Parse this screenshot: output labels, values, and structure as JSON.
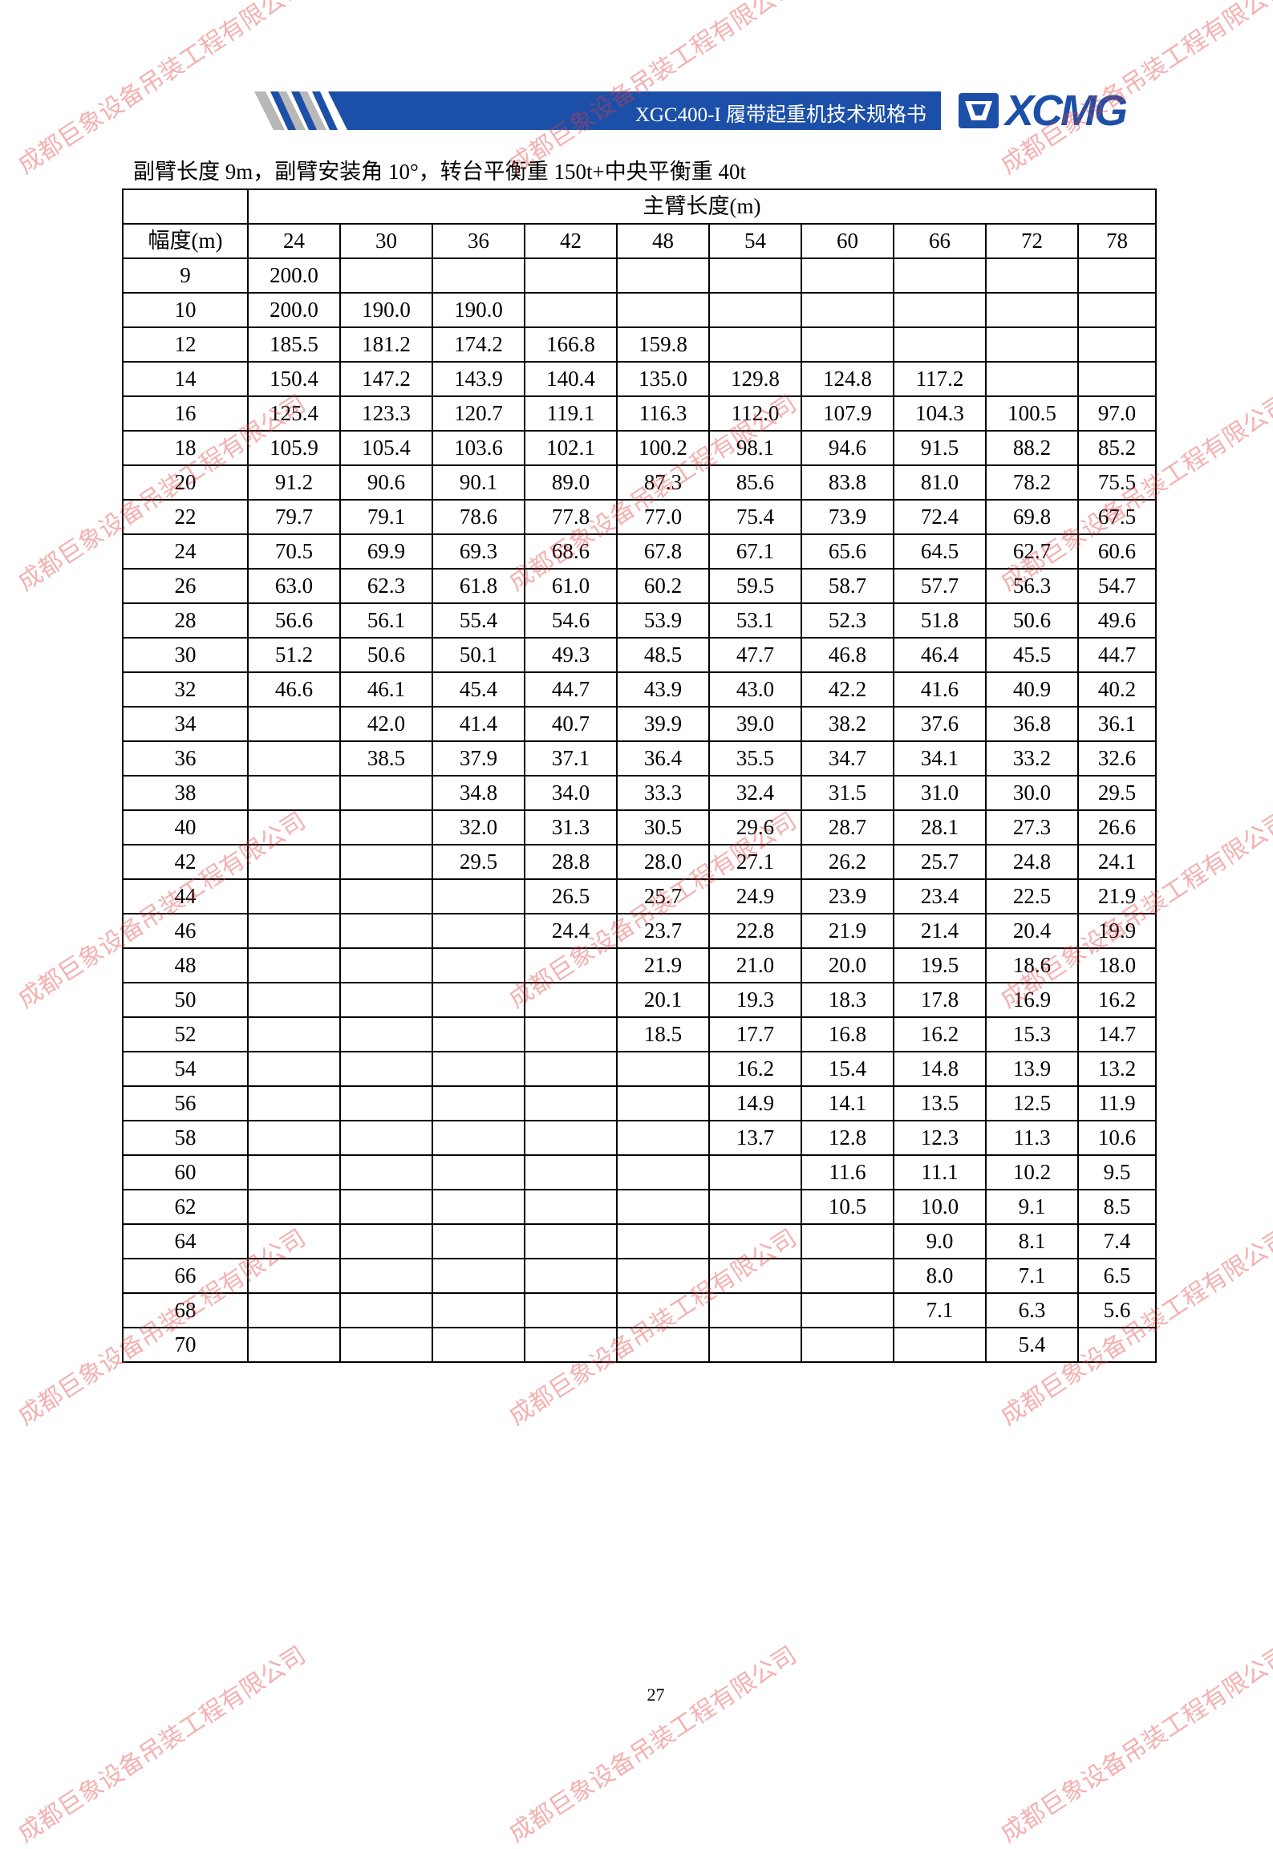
{
  "header": {
    "title": "XGC400-I 履带起重机技术规格书",
    "logo_text": "XCMG",
    "brand_color": "#1c4fa8"
  },
  "subtitle": "副臂长度 9m，副臂安装角 10°，转台平衡重 150t+中央平衡重 40t",
  "table": {
    "group_header": "主臂长度(m)",
    "row_header_label": "幅度(m)",
    "columns": [
      "24",
      "30",
      "36",
      "42",
      "48",
      "54",
      "60",
      "66",
      "72",
      "78"
    ],
    "rows": [
      {
        "radius": "9",
        "values": [
          "200.0",
          "",
          "",
          "",
          "",
          "",
          "",
          "",
          "",
          ""
        ]
      },
      {
        "radius": "10",
        "values": [
          "200.0",
          "190.0",
          "190.0",
          "",
          "",
          "",
          "",
          "",
          "",
          ""
        ]
      },
      {
        "radius": "12",
        "values": [
          "185.5",
          "181.2",
          "174.2",
          "166.8",
          "159.8",
          "",
          "",
          "",
          "",
          ""
        ]
      },
      {
        "radius": "14",
        "values": [
          "150.4",
          "147.2",
          "143.9",
          "140.4",
          "135.0",
          "129.8",
          "124.8",
          "117.2",
          "",
          ""
        ]
      },
      {
        "radius": "16",
        "values": [
          "125.4",
          "123.3",
          "120.7",
          "119.1",
          "116.3",
          "112.0",
          "107.9",
          "104.3",
          "100.5",
          "97.0"
        ]
      },
      {
        "radius": "18",
        "values": [
          "105.9",
          "105.4",
          "103.6",
          "102.1",
          "100.2",
          "98.1",
          "94.6",
          "91.5",
          "88.2",
          "85.2"
        ]
      },
      {
        "radius": "20",
        "values": [
          "91.2",
          "90.6",
          "90.1",
          "89.0",
          "87.3",
          "85.6",
          "83.8",
          "81.0",
          "78.2",
          "75.5"
        ]
      },
      {
        "radius": "22",
        "values": [
          "79.7",
          "79.1",
          "78.6",
          "77.8",
          "77.0",
          "75.4",
          "73.9",
          "72.4",
          "69.8",
          "67.5"
        ]
      },
      {
        "radius": "24",
        "values": [
          "70.5",
          "69.9",
          "69.3",
          "68.6",
          "67.8",
          "67.1",
          "65.6",
          "64.5",
          "62.7",
          "60.6"
        ]
      },
      {
        "radius": "26",
        "values": [
          "63.0",
          "62.3",
          "61.8",
          "61.0",
          "60.2",
          "59.5",
          "58.7",
          "57.7",
          "56.3",
          "54.7"
        ]
      },
      {
        "radius": "28",
        "values": [
          "56.6",
          "56.1",
          "55.4",
          "54.6",
          "53.9",
          "53.1",
          "52.3",
          "51.8",
          "50.6",
          "49.6"
        ]
      },
      {
        "radius": "30",
        "values": [
          "51.2",
          "50.6",
          "50.1",
          "49.3",
          "48.5",
          "47.7",
          "46.8",
          "46.4",
          "45.5",
          "44.7"
        ]
      },
      {
        "radius": "32",
        "values": [
          "46.6",
          "46.1",
          "45.4",
          "44.7",
          "43.9",
          "43.0",
          "42.2",
          "41.6",
          "40.9",
          "40.2"
        ]
      },
      {
        "radius": "34",
        "values": [
          "",
          "42.0",
          "41.4",
          "40.7",
          "39.9",
          "39.0",
          "38.2",
          "37.6",
          "36.8",
          "36.1"
        ]
      },
      {
        "radius": "36",
        "values": [
          "",
          "38.5",
          "37.9",
          "37.1",
          "36.4",
          "35.5",
          "34.7",
          "34.1",
          "33.2",
          "32.6"
        ]
      },
      {
        "radius": "38",
        "values": [
          "",
          "",
          "34.8",
          "34.0",
          "33.3",
          "32.4",
          "31.5",
          "31.0",
          "30.0",
          "29.5"
        ]
      },
      {
        "radius": "40",
        "values": [
          "",
          "",
          "32.0",
          "31.3",
          "30.5",
          "29.6",
          "28.7",
          "28.1",
          "27.3",
          "26.6"
        ]
      },
      {
        "radius": "42",
        "values": [
          "",
          "",
          "29.5",
          "28.8",
          "28.0",
          "27.1",
          "26.2",
          "25.7",
          "24.8",
          "24.1"
        ]
      },
      {
        "radius": "44",
        "values": [
          "",
          "",
          "",
          "26.5",
          "25.7",
          "24.9",
          "23.9",
          "23.4",
          "22.5",
          "21.9"
        ]
      },
      {
        "radius": "46",
        "values": [
          "",
          "",
          "",
          "24.4",
          "23.7",
          "22.8",
          "21.9",
          "21.4",
          "20.4",
          "19.9"
        ]
      },
      {
        "radius": "48",
        "values": [
          "",
          "",
          "",
          "",
          "21.9",
          "21.0",
          "20.0",
          "19.5",
          "18.6",
          "18.0"
        ]
      },
      {
        "radius": "50",
        "values": [
          "",
          "",
          "",
          "",
          "20.1",
          "19.3",
          "18.3",
          "17.8",
          "16.9",
          "16.2"
        ]
      },
      {
        "radius": "52",
        "values": [
          "",
          "",
          "",
          "",
          "18.5",
          "17.7",
          "16.8",
          "16.2",
          "15.3",
          "14.7"
        ]
      },
      {
        "radius": "54",
        "values": [
          "",
          "",
          "",
          "",
          "",
          "16.2",
          "15.4",
          "14.8",
          "13.9",
          "13.2"
        ]
      },
      {
        "radius": "56",
        "values": [
          "",
          "",
          "",
          "",
          "",
          "14.9",
          "14.1",
          "13.5",
          "12.5",
          "11.9"
        ]
      },
      {
        "radius": "58",
        "values": [
          "",
          "",
          "",
          "",
          "",
          "13.7",
          "12.8",
          "12.3",
          "11.3",
          "10.6"
        ]
      },
      {
        "radius": "60",
        "values": [
          "",
          "",
          "",
          "",
          "",
          "",
          "11.6",
          "11.1",
          "10.2",
          "9.5"
        ]
      },
      {
        "radius": "62",
        "values": [
          "",
          "",
          "",
          "",
          "",
          "",
          "10.5",
          "10.0",
          "9.1",
          "8.5"
        ]
      },
      {
        "radius": "64",
        "values": [
          "",
          "",
          "",
          "",
          "",
          "",
          "",
          "9.0",
          "8.1",
          "7.4"
        ]
      },
      {
        "radius": "66",
        "values": [
          "",
          "",
          "",
          "",
          "",
          "",
          "",
          "8.0",
          "7.1",
          "6.5"
        ]
      },
      {
        "radius": "68",
        "values": [
          "",
          "",
          "",
          "",
          "",
          "",
          "",
          "7.1",
          "6.3",
          "5.6"
        ]
      },
      {
        "radius": "70",
        "values": [
          "",
          "",
          "",
          "",
          "",
          "",
          "",
          "",
          "5.4",
          ""
        ]
      }
    ]
  },
  "page_number": "27",
  "watermark": {
    "text": "成都巨象设备吊装工程有限公司",
    "color": "#e63c3c"
  }
}
